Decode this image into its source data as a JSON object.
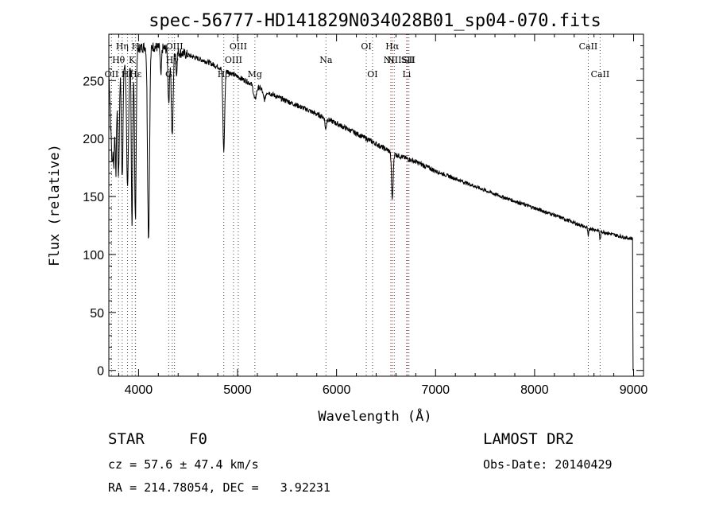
{
  "chart_data": {
    "type": "line",
    "title": "spec-56777-HD141829N034028B01_sp04-070.fits",
    "xlabel": "Wavelength (Å)",
    "ylabel": "Flux (relative)",
    "xlim": [
      3700,
      9100
    ],
    "ylim": [
      -5,
      290
    ],
    "xticks": [
      4000,
      5000,
      6000,
      7000,
      8000,
      9000
    ],
    "yticks": [
      0,
      50,
      100,
      150,
      200,
      250
    ],
    "series": [
      {
        "continuum": [
          [
            3700,
            255
          ],
          [
            3900,
            270
          ],
          [
            4000,
            278
          ],
          [
            4100,
            280
          ],
          [
            4300,
            277
          ],
          [
            4500,
            272
          ],
          [
            4700,
            266
          ],
          [
            4900,
            258
          ],
          [
            5100,
            249
          ],
          [
            5400,
            236
          ],
          [
            5700,
            225
          ],
          [
            6000,
            213
          ],
          [
            6300,
            200
          ],
          [
            6600,
            186
          ],
          [
            6800,
            180
          ],
          [
            7000,
            172
          ],
          [
            7300,
            162
          ],
          [
            7600,
            152
          ],
          [
            7900,
            143
          ],
          [
            8200,
            134
          ],
          [
            8500,
            124
          ],
          [
            8800,
            117
          ],
          [
            8950,
            114
          ]
        ],
        "absorption": [
          [
            3720,
            45,
            8
          ],
          [
            3734,
            65,
            6
          ],
          [
            3750,
            80,
            7
          ],
          [
            3771,
            90,
            7
          ],
          [
            3798,
            95,
            8
          ],
          [
            3835,
            100,
            8
          ],
          [
            3889,
            110,
            10
          ],
          [
            3934,
            150,
            7
          ],
          [
            3968,
            145,
            8
          ],
          [
            4101,
            165,
            10
          ],
          [
            4226,
            25,
            6
          ],
          [
            4305,
            45,
            8
          ],
          [
            4340,
            75,
            9
          ],
          [
            4383,
            20,
            5
          ],
          [
            4861,
            70,
            9
          ],
          [
            5175,
            12,
            14
          ],
          [
            5270,
            8,
            12
          ],
          [
            5890,
            10,
            6
          ],
          [
            6563,
            40,
            8
          ],
          [
            8542,
            8,
            5
          ],
          [
            8662,
            8,
            5
          ]
        ]
      }
    ],
    "spectral_lines": [
      {
        "label": "OII",
        "wavelength": 3727,
        "color": "#444444",
        "row": 3
      },
      {
        "label": "Hθ",
        "wavelength": 3798,
        "color": "#444444",
        "row": 2
      },
      {
        "label": "Hη",
        "wavelength": 3835,
        "color": "#444444",
        "row": 1
      },
      {
        "label": "Hζ",
        "wavelength": 3889,
        "color": "#444444",
        "row": 3
      },
      {
        "label": "K",
        "wavelength": 3934,
        "color": "#444444",
        "row": 2
      },
      {
        "label": "H",
        "wavelength": 3968,
        "color": "#444444",
        "row": 1
      },
      {
        "label": "Hε",
        "wavelength": 3970,
        "color": "#444444",
        "row": 3
      },
      {
        "label": "G",
        "wavelength": 4305,
        "color": "#444444",
        "row": 3
      },
      {
        "label": "Hγ",
        "wavelength": 4340,
        "color": "#444444",
        "row": 2
      },
      {
        "label": "OIII",
        "wavelength": 4363,
        "color": "#444444",
        "row": 1
      },
      {
        "label": "Hβ",
        "wavelength": 4861,
        "color": "#444444",
        "row": 3
      },
      {
        "label": "OIII",
        "wavelength": 4959,
        "color": "#444444",
        "row": 2
      },
      {
        "label": "OIII",
        "wavelength": 5007,
        "color": "#444444",
        "row": 1
      },
      {
        "label": "Mg",
        "wavelength": 5175,
        "color": "#444444",
        "row": 3
      },
      {
        "label": "Na",
        "wavelength": 5893,
        "color": "#444444",
        "row": 2
      },
      {
        "label": "OI",
        "wavelength": 6300,
        "color": "#444444",
        "row": 1
      },
      {
        "label": "OI",
        "wavelength": 6363,
        "color": "#444444",
        "row": 3
      },
      {
        "label": "NII",
        "wavelength": 6548,
        "color": "#444444",
        "row": 2
      },
      {
        "label": "Hα",
        "wavelength": 6563,
        "color": "#cc0000",
        "row": 1
      },
      {
        "label": "NII",
        "wavelength": 6583,
        "color": "#444444",
        "row": 2
      },
      {
        "label": "Li",
        "wavelength": 6708,
        "color": "#cc0000",
        "row": 3
      },
      {
        "label": "SII",
        "wavelength": 6716,
        "color": "#444444",
        "row": 2
      },
      {
        "label": "SII",
        "wavelength": 6731,
        "color": "#444444",
        "row": 2
      },
      {
        "label": "CaII",
        "wavelength": 8542,
        "color": "#444444",
        "row": 1
      },
      {
        "label": "CaII",
        "wavelength": 8662,
        "color": "#444444",
        "row": 3
      }
    ]
  },
  "info": {
    "class_label": "STAR",
    "subclass_label": "F0",
    "survey": "LAMOST DR2",
    "redshift": "cz = 57.6 ± 47.4 km/s",
    "obs_date": "Obs-Date: 20140429",
    "coords": "RA = 214.78054, DEC =   3.92231"
  }
}
